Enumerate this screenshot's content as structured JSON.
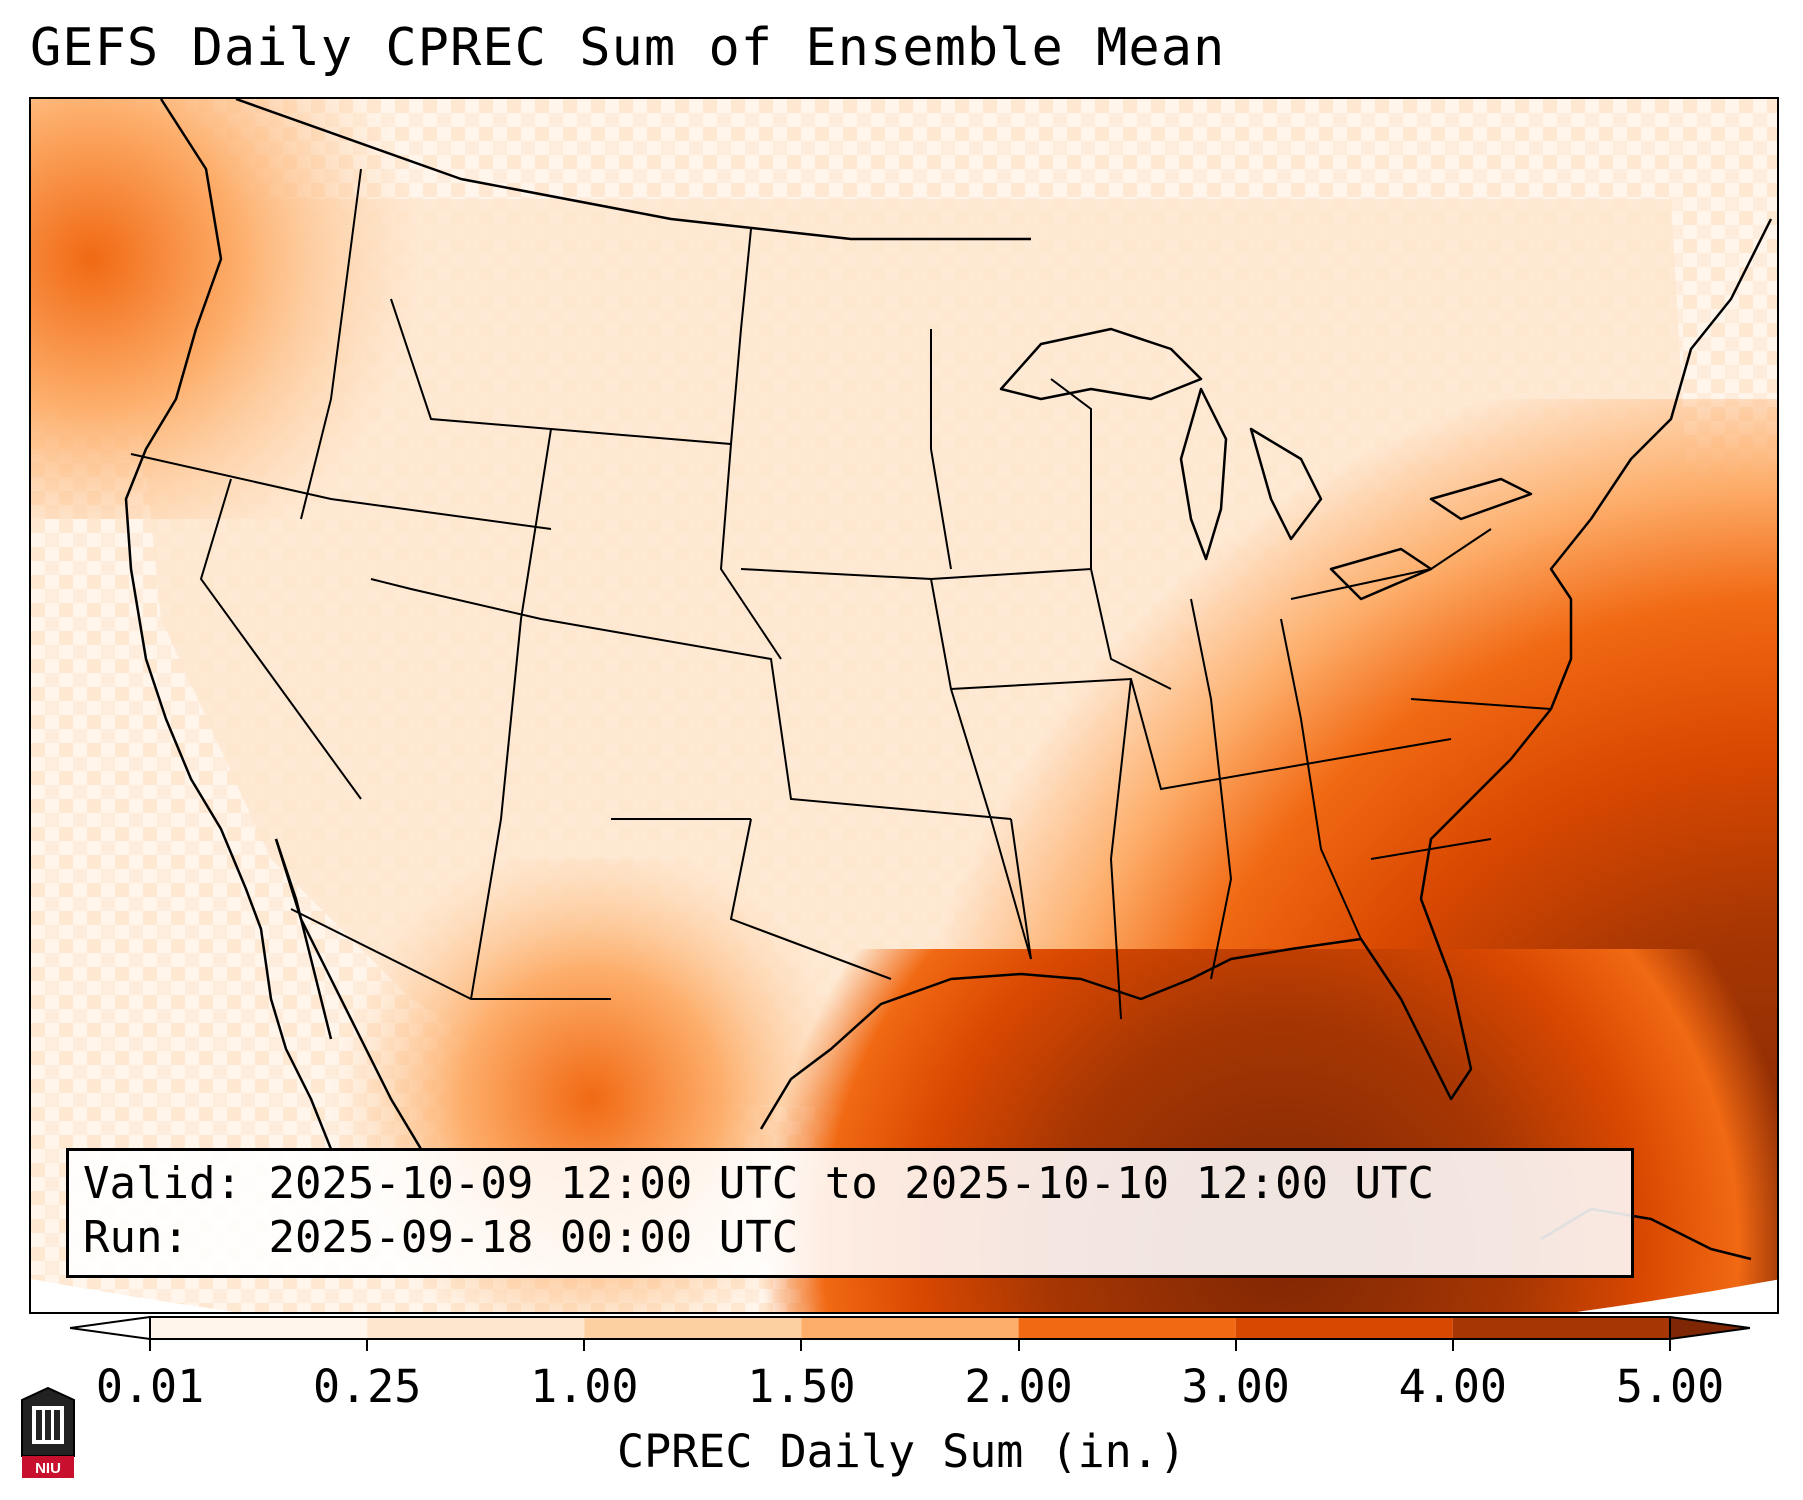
{
  "title": "GEFS Daily CPREC Sum of Ensemble Mean",
  "info": {
    "valid_label": "Valid:",
    "valid_value": "2025-10-09 12:00 UTC to 2025-10-10 12:00 UTC",
    "run_label": "Run:",
    "run_value": "2025-09-18 00:00 UTC"
  },
  "colorbar": {
    "ticks": [
      "0.01",
      "0.25",
      "1.00",
      "1.50",
      "2.00",
      "3.00",
      "4.00",
      "5.00"
    ],
    "colors": [
      "#fff5eb",
      "#fee6ce",
      "#fdd0a2",
      "#fdae6b",
      "#f16913",
      "#d94801",
      "#a63603",
      "#7f2704"
    ],
    "under_color": "#ffffff",
    "over_color": "#7f2704",
    "label": "CPREC Daily Sum (in.)"
  },
  "logo": {
    "icon": "niu-logo-icon",
    "text": "NIU"
  },
  "map": {
    "field": "CPREC daily sum",
    "heaviest_region": "Gulf of Mexico, Florida and western Atlantic",
    "projection_extent": "Contiguous United States"
  }
}
